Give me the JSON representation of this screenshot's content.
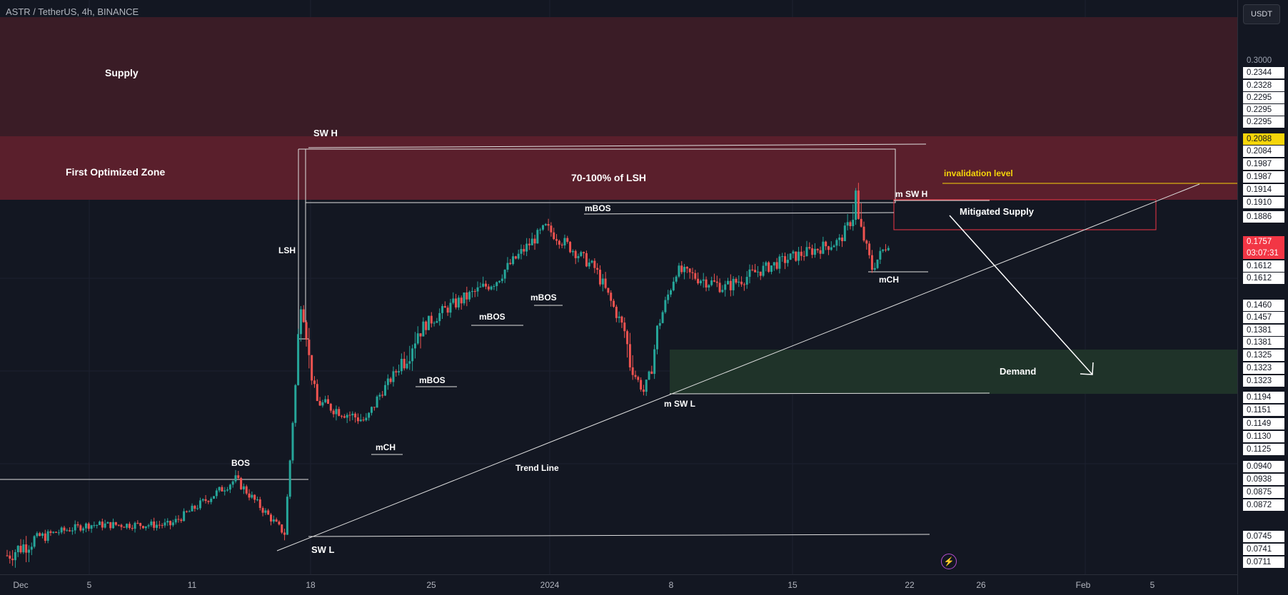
{
  "symbol": "ASTR / TetherUS, 4h, BINANCE",
  "currency_button": "USDT",
  "current_price": {
    "value": "0.1757",
    "countdown": "03:07:31",
    "color": "#f23645"
  },
  "highlight_price": "0.2088",
  "price_axis_labels": [
    {
      "text": "0.3000",
      "style": "plain"
    },
    {
      "text": "0.2344",
      "style": "box"
    },
    {
      "text": "0.2328",
      "style": "box"
    },
    {
      "text": "0.2295",
      "style": "box"
    },
    {
      "text": "0.2295",
      "style": "box"
    },
    {
      "text": "0.2295",
      "style": "box"
    },
    {
      "text": "0.2088",
      "style": "highlight"
    },
    {
      "text": "0.2084",
      "style": "box"
    },
    {
      "text": "0.1987",
      "style": "box"
    },
    {
      "text": "0.1987",
      "style": "box"
    },
    {
      "text": "0.1914",
      "style": "box"
    },
    {
      "text": "0.1910",
      "style": "box"
    },
    {
      "text": "0.1886",
      "style": "box"
    },
    {
      "text": "0.1612",
      "style": "box"
    },
    {
      "text": "0.1612",
      "style": "box"
    },
    {
      "text": "0.1460",
      "style": "box"
    },
    {
      "text": "0.1457",
      "style": "box"
    },
    {
      "text": "0.1381",
      "style": "box"
    },
    {
      "text": "0.1381",
      "style": "box"
    },
    {
      "text": "0.1325",
      "style": "box"
    },
    {
      "text": "0.1323",
      "style": "box"
    },
    {
      "text": "0.1323",
      "style": "box"
    },
    {
      "text": "0.1194",
      "style": "box"
    },
    {
      "text": "0.1151",
      "style": "box"
    },
    {
      "text": "0.1149",
      "style": "box"
    },
    {
      "text": "0.1130",
      "style": "box"
    },
    {
      "text": "0.1125",
      "style": "box"
    },
    {
      "text": "0.0940",
      "style": "box"
    },
    {
      "text": "0.0938",
      "style": "box"
    },
    {
      "text": "0.0875",
      "style": "box"
    },
    {
      "text": "0.0872",
      "style": "box"
    },
    {
      "text": "0.0745",
      "style": "box"
    },
    {
      "text": "0.0741",
      "style": "box"
    },
    {
      "text": "0.0711",
      "style": "box"
    }
  ],
  "time_axis_labels": [
    "Dec",
    "5",
    "11",
    "18",
    "25",
    "2024",
    "8",
    "15",
    "22",
    "26",
    "Feb",
    "5"
  ],
  "zones": {
    "supply": "Supply",
    "first_optimized": "First Optimized Zone",
    "lsh_range": "70-100% of LSH",
    "mitigated_supply": "Mitigated Supply",
    "demand": "Demand"
  },
  "annotations": {
    "sw_h": "SW H",
    "sw_l": "SW L",
    "lsh": "LSH",
    "bos": "BOS",
    "mch_1": "mCH",
    "mbos_1": "mBOS",
    "mbos_2": "mBOS",
    "mbos_3": "mBOS",
    "mbos_4": "mBOS",
    "m_sw_l": "m SW L",
    "m_sw_h": "m SW H",
    "mch_2": "mCH",
    "trend_line": "Trend Line",
    "invalidation": "invalidation level"
  },
  "colors": {
    "background": "#131722",
    "up_candle": "#26a69a",
    "down_candle": "#ef5350",
    "supply_zone": "#3a1c26",
    "optimized_zone": "#5a1f2c",
    "demand_zone": "#1f3329",
    "invalidation": "#f5d50a"
  },
  "chart_data": {
    "type": "candlestick",
    "title": "ASTR / TetherUS, 4h, BINANCE",
    "x_range": [
      "2023-11-30",
      "2024-02-08"
    ],
    "y_range": [
      0.07,
      0.3
    ],
    "price_path": [
      {
        "date": "2023-11-30",
        "price": 0.072
      },
      {
        "date": "2023-12-05",
        "price": 0.0785
      },
      {
        "date": "2023-12-10",
        "price": 0.0785
      },
      {
        "date": "2023-12-14",
        "price": 0.094
      },
      {
        "date": "2023-12-17",
        "price": 0.0755
      },
      {
        "date": "2023-12-18",
        "price": 0.149
      },
      {
        "date": "2023-12-19",
        "price": 0.118
      },
      {
        "date": "2023-12-22",
        "price": 0.112
      },
      {
        "date": "2023-12-24",
        "price": 0.1325
      },
      {
        "date": "2023-12-27",
        "price": 0.147
      },
      {
        "date": "2023-12-30",
        "price": 0.158
      },
      {
        "date": "2024-01-02",
        "price": 0.183
      },
      {
        "date": "2024-01-05",
        "price": 0.163
      },
      {
        "date": "2024-01-08",
        "price": 0.122
      },
      {
        "date": "2024-01-10",
        "price": 0.162
      },
      {
        "date": "2024-01-13",
        "price": 0.155
      },
      {
        "date": "2024-01-17",
        "price": 0.168
      },
      {
        "date": "2024-01-20",
        "price": 0.176
      },
      {
        "date": "2024-01-21",
        "price": 0.1912
      },
      {
        "date": "2024-01-22",
        "price": 0.163
      },
      {
        "date": "2024-01-23",
        "price": 0.1757
      }
    ],
    "levels": {
      "supply_zone": [
        0.2088,
        0.3
      ],
      "first_optimized_zone": [
        0.1914,
        0.2088
      ],
      "demand_zone": [
        0.1194,
        0.1381
      ],
      "mitigated_supply": [
        0.1886,
        0.1914
      ],
      "invalidation_level": 0.1987,
      "sw_h": 0.2095,
      "sw_l": 0.0745,
      "m_sw_l": 0.1194,
      "bos": 0.094
    }
  }
}
